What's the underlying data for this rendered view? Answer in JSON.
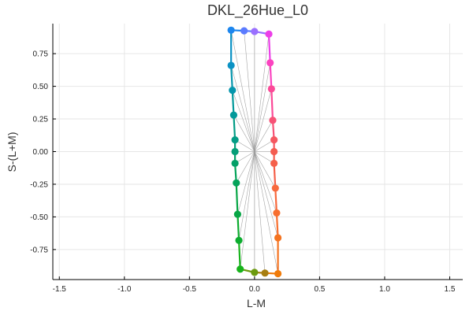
{
  "chart_data": {
    "type": "line",
    "title": "DKL_26Hue_L0",
    "xlabel": "L-M",
    "ylabel": "S-(L+M)",
    "xlim": [
      -1.55,
      1.6
    ],
    "ylim": [
      -0.98,
      0.98
    ],
    "xticks": [
      -1.5,
      -1.0,
      -0.5,
      0.0,
      0.5,
      1.0,
      1.5
    ],
    "xtick_labels": [
      "-1.5",
      "-1.0",
      "-0.5",
      "0.0",
      "0.5",
      "1.0",
      "1.5"
    ],
    "yticks": [
      -0.75,
      -0.5,
      -0.25,
      0.0,
      0.25,
      0.5,
      0.75
    ],
    "ytick_labels": [
      "-0.75",
      "-0.50",
      "-0.25",
      "0.00",
      "0.25",
      "0.50",
      "0.75"
    ],
    "grid": true,
    "center": [
      0,
      0
    ],
    "points": [
      {
        "x": -0.18,
        "y": 0.93,
        "color": "#1c86ee"
      },
      {
        "x": -0.08,
        "y": 0.925,
        "color": "#5b7bff"
      },
      {
        "x": 0.0,
        "y": 0.92,
        "color": "#9a70ff"
      },
      {
        "x": 0.11,
        "y": 0.9,
        "color": "#ec3fe8"
      },
      {
        "x": 0.12,
        "y": 0.68,
        "color": "#fb43c0"
      },
      {
        "x": 0.13,
        "y": 0.48,
        "color": "#fb4a98"
      },
      {
        "x": 0.14,
        "y": 0.24,
        "color": "#f75276"
      },
      {
        "x": 0.15,
        "y": 0.09,
        "color": "#f55861"
      },
      {
        "x": 0.15,
        "y": 0.0,
        "color": "#f45c50"
      },
      {
        "x": 0.15,
        "y": -0.09,
        "color": "#f5604a"
      },
      {
        "x": 0.16,
        "y": -0.28,
        "color": "#f7693d"
      },
      {
        "x": 0.17,
        "y": -0.47,
        "color": "#f76f2f"
      },
      {
        "x": 0.18,
        "y": -0.66,
        "color": "#f47320"
      },
      {
        "x": 0.18,
        "y": -0.935,
        "color": "#f07b0a"
      },
      {
        "x": 0.08,
        "y": -0.93,
        "color": "#a77e10"
      },
      {
        "x": 0.0,
        "y": -0.925,
        "color": "#6c9a0e"
      },
      {
        "x": -0.11,
        "y": -0.9,
        "color": "#18b31c"
      },
      {
        "x": -0.12,
        "y": -0.68,
        "color": "#0dac2f"
      },
      {
        "x": -0.13,
        "y": -0.48,
        "color": "#08a646"
      },
      {
        "x": -0.14,
        "y": -0.24,
        "color": "#05a35a"
      },
      {
        "x": -0.15,
        "y": -0.09,
        "color": "#04a068"
      },
      {
        "x": -0.15,
        "y": 0.0,
        "color": "#049e77"
      },
      {
        "x": -0.15,
        "y": 0.09,
        "color": "#039c85"
      },
      {
        "x": -0.16,
        "y": 0.28,
        "color": "#03999a"
      },
      {
        "x": -0.17,
        "y": 0.47,
        "color": "#0696ad"
      },
      {
        "x": -0.18,
        "y": 0.66,
        "color": "#0b92c4"
      }
    ]
  }
}
